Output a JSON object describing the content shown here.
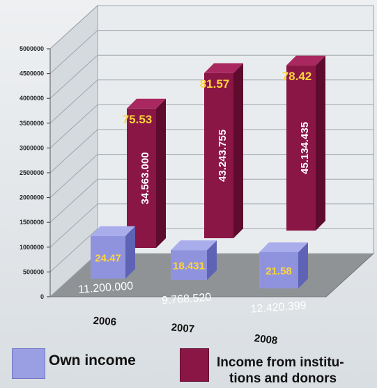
{
  "chart_data": {
    "type": "bar",
    "categories": [
      "2006",
      "2007",
      "2008"
    ],
    "ylim": [
      0,
      5000000
    ],
    "yticks": [
      0,
      500000,
      1000000,
      1500000,
      2000000,
      2500000,
      3000000,
      3500000,
      4000000,
      4500000,
      5000000
    ],
    "ytick_labels": [
      "0",
      "500000",
      "1000000",
      "1500000",
      "2000000",
      "2500000",
      "3000000",
      "3500000",
      "4000000",
      "4500000",
      "5000000"
    ],
    "grid": true,
    "legend_position": "bottom",
    "series": [
      {
        "name": "Own income",
        "color": "#8f93dd",
        "value_labels": [
          "11.200.000",
          "9.768.520",
          "12.420.399"
        ],
        "percent_labels": [
          "24.47",
          "18.431",
          "21.58"
        ],
        "heights": [
          1000000,
          700000,
          850000
        ]
      },
      {
        "name": "Income from institu- tions and donors",
        "color": "#8a1646",
        "value_labels": [
          "34.563.000",
          "43.243.755",
          "45.134.435"
        ],
        "percent_labels": [
          "75.53",
          "81.57",
          "78.42"
        ],
        "heights": [
          3800000,
          4500000,
          4500000
        ]
      }
    ]
  },
  "legend": {
    "own_income": "Own income",
    "institutions_line1": "Income from institu-",
    "institutions_line2": "tions and donors"
  }
}
